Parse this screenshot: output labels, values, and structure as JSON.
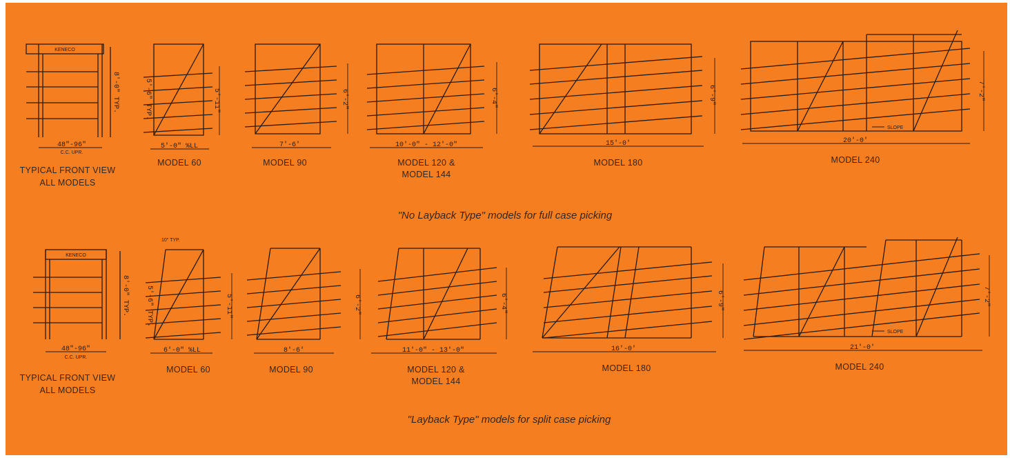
{
  "colors": {
    "background": "#f57f20",
    "ink": "#2a1a10"
  },
  "brand_plate": "KENECO",
  "rows": [
    {
      "caption": "\"No Layback Type\" models for full case picking",
      "front_view": {
        "label_line1": "TYPICAL FRONT VIEW",
        "label_line2": "ALL MODELS",
        "width": "48\"-96\"",
        "width_note": "C.C. UPR.",
        "height": "8'-0\" TYP."
      },
      "models": [
        {
          "label": "MODEL 60",
          "label2": "",
          "width": "5'-0\" %LL",
          "height": "5'-11\"",
          "extra": "5'-6\" TYP."
        },
        {
          "label": "MODEL 90",
          "label2": "",
          "width": "7'-6'",
          "height": "6'-2\""
        },
        {
          "label": "MODEL 120 &",
          "label2": "MODEL 144",
          "width": "10'-0\" - 12'-0\"",
          "height": "6'-4\""
        },
        {
          "label": "MODEL 180",
          "label2": "",
          "width": "15'-0'",
          "height": "6'-9\""
        },
        {
          "label": "MODEL 240",
          "label2": "",
          "width": "20'-0'",
          "height": "7'-2\"",
          "slope": "SLOPE"
        }
      ]
    },
    {
      "caption": "\"Layback Type\" models for split case picking",
      "front_view": {
        "label_line1": "TYPICAL FRONT VIEW",
        "label_line2": "ALL MODELS",
        "width": "48\"-96\"",
        "width_note": "C.C. UPR.",
        "height": "8'-0\" TYP."
      },
      "models": [
        {
          "label": "MODEL 60",
          "label2": "",
          "width": "6'-0\" %LL",
          "height": "5'-11\"",
          "extra": "5'-6\" TYP.",
          "top_note": "10\" TYP."
        },
        {
          "label": "MODEL 90",
          "label2": "",
          "width": "8'-6'",
          "height": "6'-2\""
        },
        {
          "label": "MODEL 120 &",
          "label2": "MODEL 144",
          "width": "11'-0\" - 13'-0\"",
          "height": "6'-4\""
        },
        {
          "label": "MODEL 180",
          "label2": "",
          "width": "16'-0'",
          "height": "6'-9\""
        },
        {
          "label": "MODEL 240",
          "label2": "",
          "width": "21'-0'",
          "height": "7'-2\"",
          "slope": "SLOPE"
        }
      ]
    }
  ]
}
